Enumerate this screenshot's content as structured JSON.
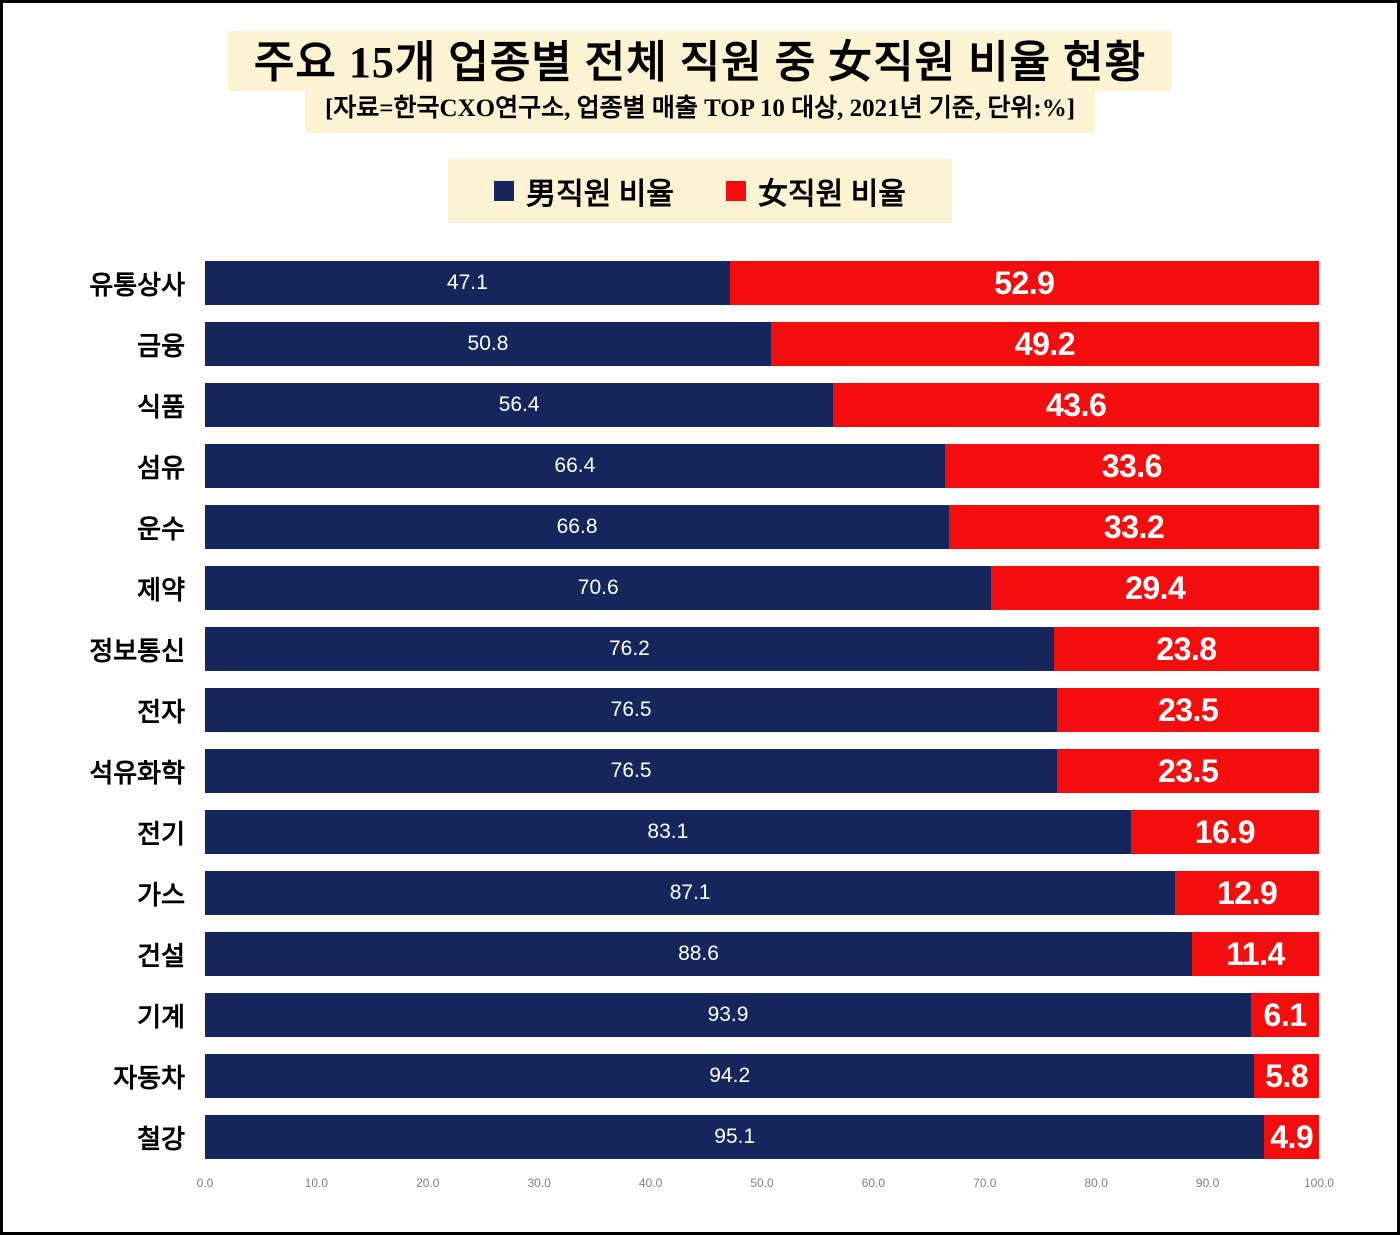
{
  "title": "주요 15개 업종별 전체 직원 중 女직원 비율 현황",
  "subtitle": "[자료=한국CXO연구소, 업종별 매출 TOP 10 대상, 2021년 기준, 단위:%]",
  "legend": {
    "items": [
      {
        "label": "男직원 비율",
        "color": "#14265c"
      },
      {
        "label": "女직원 비율",
        "color": "#f40d0d"
      }
    ]
  },
  "chart_data": {
    "type": "bar",
    "orientation": "horizontal-stacked",
    "title": "주요 15개 업종별 전체 직원 중 女직원 비율 현황",
    "xlabel": "",
    "ylabel": "",
    "xlim": [
      0,
      100
    ],
    "grid": false,
    "legend_position": "top-center",
    "categories": [
      "유통상사",
      "금융",
      "식품",
      "섬유",
      "운수",
      "제약",
      "정보통신",
      "전자",
      "석유화학",
      "전기",
      "가스",
      "건설",
      "기계",
      "자동차",
      "철강"
    ],
    "series": [
      {
        "name": "男직원 비율",
        "color": "#14265c",
        "values": [
          47.1,
          50.8,
          56.4,
          66.4,
          66.8,
          70.6,
          76.2,
          76.5,
          76.5,
          83.1,
          87.1,
          88.6,
          93.9,
          94.2,
          95.1
        ]
      },
      {
        "name": "女직원 비율",
        "color": "#f40d0d",
        "values": [
          52.9,
          49.2,
          43.6,
          33.6,
          33.2,
          29.4,
          23.8,
          23.5,
          23.5,
          16.9,
          12.9,
          11.4,
          6.1,
          5.8,
          4.9
        ]
      }
    ],
    "x_tick_labels": [
      "0.0",
      "10.0",
      "20.0",
      "30.0",
      "40.0",
      "50.0",
      "60.0",
      "70.0",
      "80.0",
      "90.0",
      "100.0"
    ]
  }
}
